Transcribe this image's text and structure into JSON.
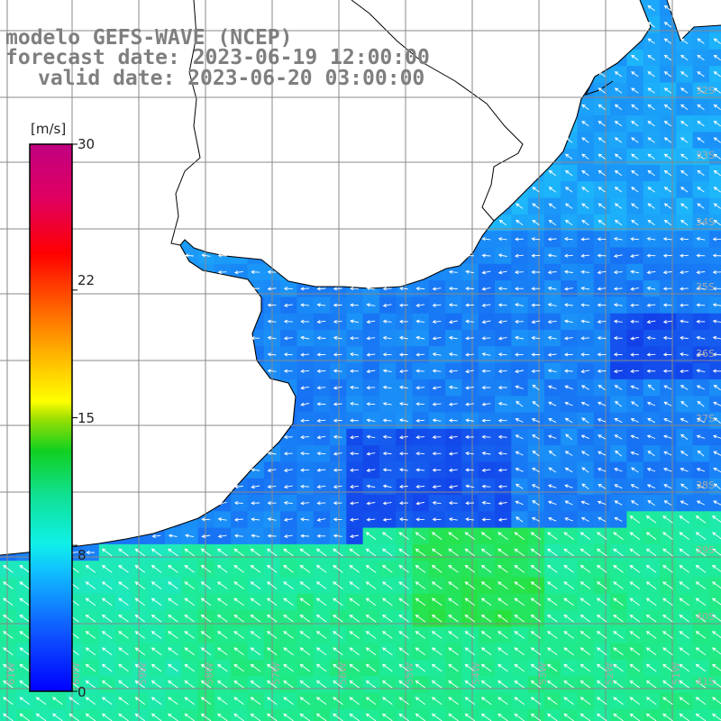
{
  "header": {
    "line1": "modelo GEFS-WAVE (NCEP)",
    "line2": "forecast date: 2023-06-19 12:00:00",
    "line3": "valid date: 2023-06-20 03:00:00"
  },
  "colorbar": {
    "unit": "[m/s]",
    "ticks": [
      "30",
      "22",
      "15",
      "8",
      "0"
    ],
    "tick_values": [
      30,
      22,
      15,
      8,
      0
    ]
  },
  "lat_labels": [
    "32S",
    "33S",
    "34S",
    "35S",
    "36S",
    "37S",
    "38S",
    "39S",
    "40S",
    "41S"
  ],
  "lon_labels": [
    "61W",
    "60W",
    "59W",
    "58W",
    "57W",
    "56W",
    "55W",
    "54W",
    "53W",
    "52W",
    "51W"
  ],
  "colors": {
    "land": "#ffffff",
    "grid": "#888888",
    "coast": "#000000",
    "arrow": "#ffffff",
    "text": "#7f7f7f"
  },
  "field": {
    "description": "wind speed field",
    "low_zone_color": "#1f6bf2",
    "high_zone_color": "#1ee87a"
  }
}
